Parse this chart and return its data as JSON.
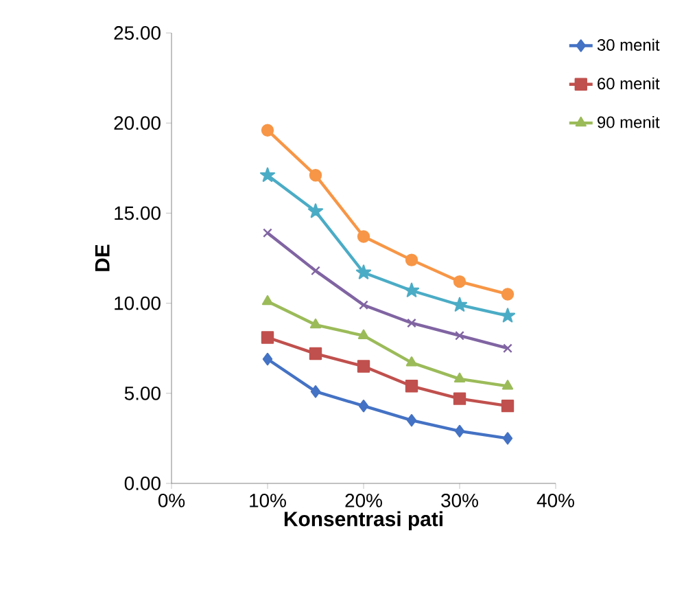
{
  "chart_data": {
    "type": "line",
    "xlabel": "Konsentrasi pati",
    "ylabel": "DE",
    "x": [
      10,
      15,
      20,
      25,
      30,
      35
    ],
    "xlim": [
      0,
      40
    ],
    "xticks": [
      {
        "value": 0,
        "label": "0%"
      },
      {
        "value": 10,
        "label": "10%"
      },
      {
        "value": 20,
        "label": "20%"
      },
      {
        "value": 30,
        "label": "30%"
      },
      {
        "value": 40,
        "label": "40%"
      }
    ],
    "ylim": [
      0,
      25
    ],
    "yticks": [
      {
        "value": 0,
        "label": "0.00"
      },
      {
        "value": 5,
        "label": "5.00"
      },
      {
        "value": 10,
        "label": "10.00"
      },
      {
        "value": 15,
        "label": "15.00"
      },
      {
        "value": 20,
        "label": "20.00"
      },
      {
        "value": 25,
        "label": "25.00"
      }
    ],
    "grid": false,
    "legend": "top right",
    "series": [
      {
        "name": "30 menit",
        "color": "#4472c4",
        "marker": "diamond",
        "values": [
          6.9,
          5.1,
          4.3,
          3.5,
          2.9,
          2.5
        ]
      },
      {
        "name": "60 menit",
        "color": "#c0504d",
        "marker": "square",
        "values": [
          8.1,
          7.2,
          6.5,
          5.4,
          4.7,
          4.3
        ]
      },
      {
        "name": "90 menit",
        "color": "#9bbb59",
        "marker": "triangle",
        "values": [
          10.1,
          8.8,
          8.2,
          6.7,
          5.8,
          5.4
        ]
      },
      {
        "color": "#8064a2",
        "marker": "cross",
        "values": [
          13.9,
          11.8,
          9.9,
          8.9,
          8.2,
          7.5
        ]
      },
      {
        "color": "#4bacc6",
        "marker": "star",
        "values": [
          17.1,
          15.1,
          11.7,
          10.7,
          9.9,
          9.3
        ]
      },
      {
        "color": "#f79646",
        "marker": "circle",
        "values": [
          19.6,
          17.1,
          13.7,
          12.4,
          11.2,
          10.5
        ]
      }
    ]
  }
}
